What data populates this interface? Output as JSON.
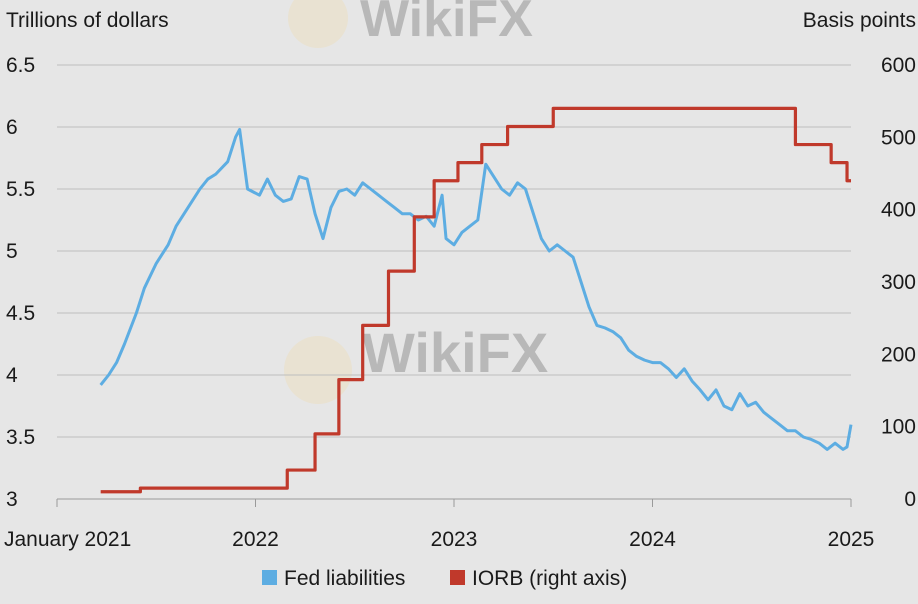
{
  "chart_data": {
    "type": "line",
    "watermark": "WikiFX",
    "left_axis_label": "Trillions of dollars",
    "right_axis_label": "Basis points",
    "x_ticks": [
      "January 2021",
      "2022",
      "2023",
      "2024",
      "2025"
    ],
    "x_tick_values": [
      2021.0,
      2022.0,
      2023.0,
      2024.0,
      2025.0
    ],
    "xlim": [
      2021.0,
      2025.0
    ],
    "ylim_left": [
      3,
      6.5
    ],
    "ylim_right": [
      0,
      600
    ],
    "y_ticks_left": [
      "3",
      "3.5",
      "4",
      "4.5",
      "5",
      "5.5",
      "6",
      "6.5"
    ],
    "y_ticks_right": [
      "0",
      "100",
      "200",
      "300",
      "400",
      "500",
      "600"
    ],
    "series": [
      {
        "name": "Fed liabilities",
        "axis": "left",
        "color": "#5dade2",
        "x": [
          2021.22,
          2021.26,
          2021.3,
          2021.34,
          2021.4,
          2021.44,
          2021.5,
          2021.56,
          2021.6,
          2021.66,
          2021.72,
          2021.76,
          2021.8,
          2021.86,
          2021.9,
          2021.92,
          2021.96,
          2022.02,
          2022.06,
          2022.1,
          2022.14,
          2022.18,
          2022.22,
          2022.26,
          2022.3,
          2022.34,
          2022.38,
          2022.42,
          2022.46,
          2022.5,
          2022.54,
          2022.58,
          2022.62,
          2022.66,
          2022.7,
          2022.74,
          2022.78,
          2022.82,
          2022.86,
          2022.9,
          2022.94,
          2022.96,
          2023.0,
          2023.04,
          2023.08,
          2023.12,
          2023.16,
          2023.2,
          2023.24,
          2023.28,
          2023.32,
          2023.36,
          2023.4,
          2023.44,
          2023.48,
          2023.52,
          2023.56,
          2023.6,
          2023.64,
          2023.68,
          2023.72,
          2023.76,
          2023.8,
          2023.84,
          2023.88,
          2023.92,
          2023.96,
          2024.0,
          2024.04,
          2024.08,
          2024.12,
          2024.16,
          2024.2,
          2024.24,
          2024.28,
          2024.32,
          2024.36,
          2024.4,
          2024.44,
          2024.48,
          2024.52,
          2024.56,
          2024.6,
          2024.64,
          2024.68,
          2024.72,
          2024.76,
          2024.8,
          2024.84,
          2024.88,
          2024.92,
          2024.96,
          2024.98,
          2025.0
        ],
        "values": [
          3.92,
          4.0,
          4.1,
          4.25,
          4.5,
          4.7,
          4.9,
          5.05,
          5.2,
          5.35,
          5.5,
          5.58,
          5.62,
          5.72,
          5.92,
          5.98,
          5.5,
          5.45,
          5.58,
          5.45,
          5.4,
          5.42,
          5.6,
          5.58,
          5.3,
          5.1,
          5.35,
          5.48,
          5.5,
          5.45,
          5.55,
          5.5,
          5.45,
          5.4,
          5.35,
          5.3,
          5.3,
          5.25,
          5.28,
          5.2,
          5.45,
          5.1,
          5.05,
          5.15,
          5.2,
          5.25,
          5.7,
          5.6,
          5.5,
          5.45,
          5.55,
          5.5,
          5.3,
          5.1,
          5.0,
          5.05,
          5.0,
          4.95,
          4.75,
          4.55,
          4.4,
          4.38,
          4.35,
          4.3,
          4.2,
          4.15,
          4.12,
          4.1,
          4.1,
          4.05,
          3.98,
          4.05,
          3.95,
          3.88,
          3.8,
          3.88,
          3.75,
          3.72,
          3.85,
          3.75,
          3.78,
          3.7,
          3.65,
          3.6,
          3.55,
          3.55,
          3.5,
          3.48,
          3.45,
          3.4,
          3.45,
          3.4,
          3.42,
          3.6
        ]
      },
      {
        "name": "IORB (right axis)",
        "axis": "right",
        "color": "#c0392b",
        "step": true,
        "x": [
          2021.22,
          2021.42,
          2021.72,
          2022.16,
          2022.3,
          2022.42,
          2022.54,
          2022.67,
          2022.8,
          2022.9,
          2023.02,
          2023.14,
          2023.27,
          2023.5,
          2024.72,
          2024.9,
          2024.98
        ],
        "values": [
          10,
          15,
          15,
          40,
          90,
          165,
          240,
          315,
          390,
          440,
          465,
          490,
          515,
          540,
          490,
          465,
          440
        ],
        "end_x": 2025.0
      }
    ]
  }
}
